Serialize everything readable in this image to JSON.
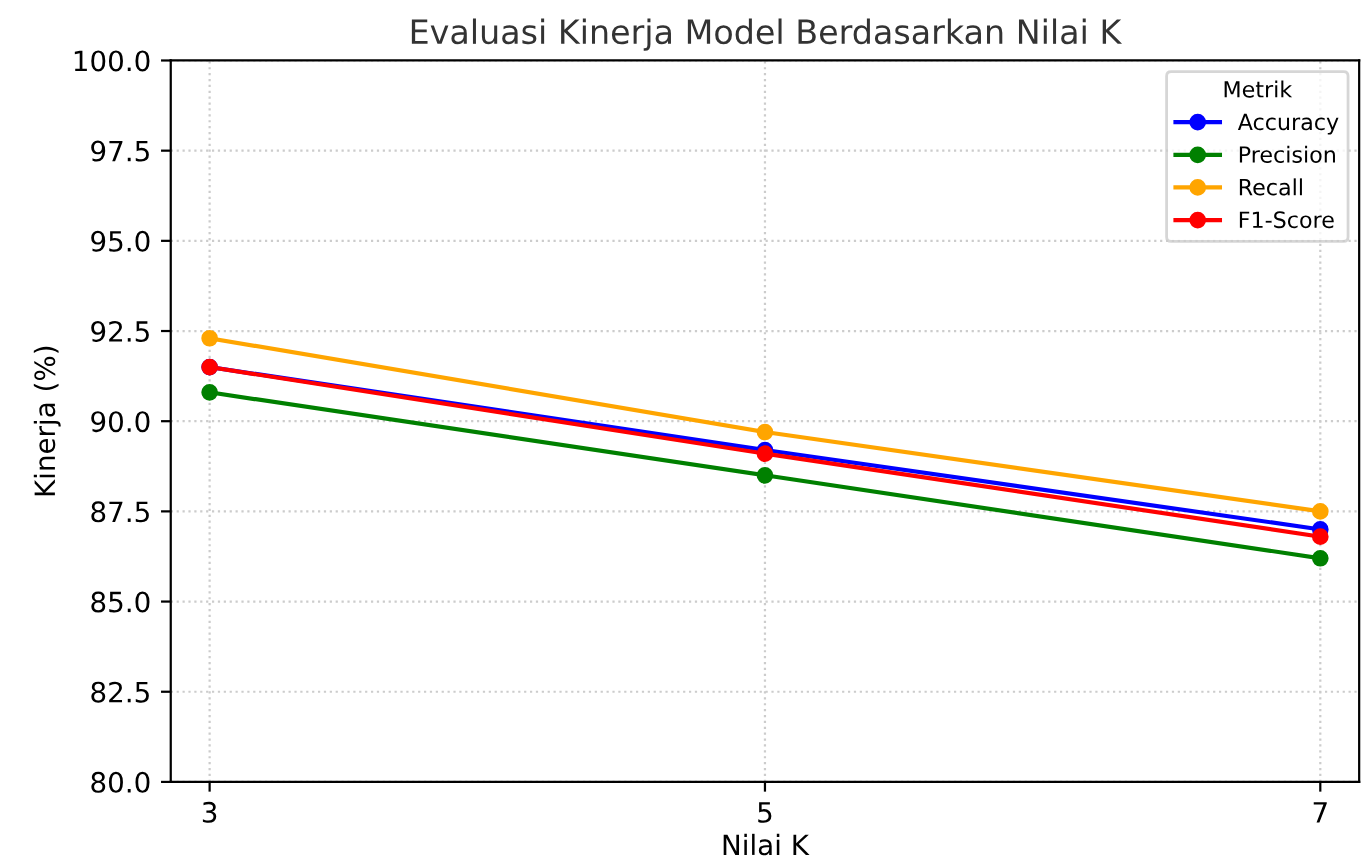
{
  "chart_data": {
    "type": "line",
    "title": "Evaluasi Kinerja Model Berdasarkan Nilai K",
    "xlabel": "Nilai K",
    "ylabel": "Kinerja (%)",
    "legend_title": "Metrik",
    "x": [
      3,
      5,
      7
    ],
    "series": [
      {
        "name": "Accuracy",
        "color": "#0000ff",
        "values": [
          91.5,
          89.2,
          87.0
        ]
      },
      {
        "name": "Precision",
        "color": "#008000",
        "values": [
          90.8,
          88.5,
          86.2
        ]
      },
      {
        "name": "Recall",
        "color": "#ffa500",
        "values": [
          92.3,
          89.7,
          87.5
        ]
      },
      {
        "name": "F1-Score",
        "color": "#ff0000",
        "values": [
          91.5,
          89.1,
          86.8
        ]
      }
    ],
    "xlim": [
      2.86,
      7.14
    ],
    "xticks": [
      3,
      5,
      7
    ],
    "ylim": [
      80,
      100
    ],
    "yticks": [
      {
        "value": 80,
        "label": "80.0"
      },
      82.5,
      {
        "value": 85,
        "label": "85.0"
      },
      87.5,
      {
        "value": 90,
        "label": "90.0"
      },
      92.5,
      {
        "value": 95,
        "label": "95.0"
      },
      97.5,
      {
        "value": 100,
        "label": "100.0"
      }
    ],
    "grid": true,
    "legend": "top right",
    "marker": "circle",
    "line_style": "solid"
  }
}
